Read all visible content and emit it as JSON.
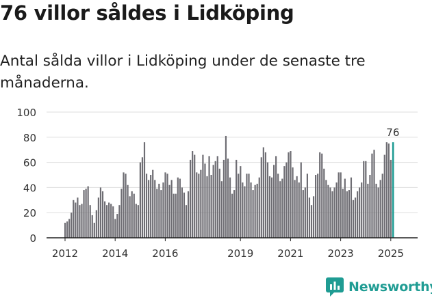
{
  "title": "76 villor såldes i Lidköping",
  "subtitle": "Antal sålda villor i Lidköping under de senaste tre månaderna.",
  "brand": {
    "name": "Newsworthy",
    "icon": "chart-logo-icon"
  },
  "colors": {
    "bar": "#6e6d73",
    "highlight": "#1f9c93",
    "grid": "#dddddd",
    "axis": "#222222"
  },
  "chart_data": {
    "type": "bar",
    "title": "76 villor såldes i Lidköping",
    "subtitle": "Antal sålda villor i Lidköping under de senaste tre månaderna.",
    "xlabel": "",
    "ylabel": "",
    "ylim": [
      0,
      100
    ],
    "yticks": [
      0,
      20,
      40,
      60,
      80,
      100
    ],
    "grid": true,
    "x_start": "2012-01",
    "x_tick_labels": [
      {
        "label": "2012",
        "index": 0
      },
      {
        "label": "2014",
        "index": 24
      },
      {
        "label": "2016",
        "index": 48
      },
      {
        "label": "2019",
        "index": 84
      },
      {
        "label": "2021",
        "index": 108
      },
      {
        "label": "2023",
        "index": 132
      },
      {
        "label": "2025",
        "index": 156
      }
    ],
    "highlight_label": "76",
    "values": [
      12,
      13,
      15,
      20,
      30,
      28,
      32,
      26,
      27,
      38,
      39,
      41,
      26,
      18,
      12,
      22,
      32,
      40,
      37,
      29,
      26,
      28,
      27,
      25,
      15,
      19,
      26,
      39,
      52,
      51,
      42,
      33,
      37,
      35,
      27,
      26,
      60,
      64,
      76,
      51,
      46,
      50,
      54,
      46,
      39,
      43,
      38,
      44,
      52,
      51,
      42,
      46,
      35,
      35,
      48,
      47,
      40,
      36,
      26,
      37,
      62,
      69,
      66,
      52,
      51,
      54,
      66,
      59,
      49,
      65,
      50,
      58,
      61,
      65,
      55,
      45,
      62,
      81,
      63,
      48,
      35,
      38,
      62,
      51,
      57,
      44,
      41,
      51,
      51,
      44,
      38,
      42,
      43,
      48,
      64,
      72,
      68,
      60,
      49,
      48,
      58,
      65,
      51,
      45,
      47,
      57,
      60,
      68,
      69,
      56,
      46,
      49,
      44,
      60,
      38,
      40,
      51,
      32,
      26,
      33,
      50,
      51,
      68,
      67,
      55,
      46,
      42,
      40,
      37,
      40,
      44,
      52,
      52,
      39,
      47,
      37,
      38,
      48,
      30,
      32,
      37,
      40,
      44,
      61,
      61,
      43,
      50,
      67,
      70,
      43,
      40,
      46,
      51,
      66,
      76,
      75,
      62,
      76
    ]
  }
}
